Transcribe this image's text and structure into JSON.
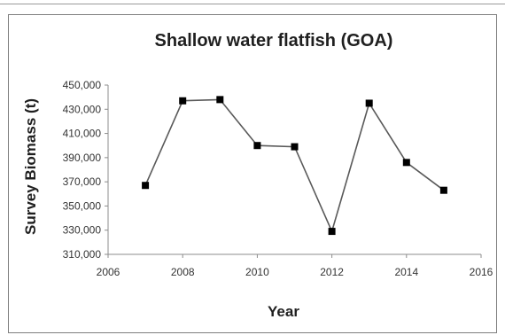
{
  "chart_data": {
    "type": "line",
    "title": "Shallow water flatfish (GOA)",
    "xlabel": "Year",
    "ylabel": "Survey Biomass (t)",
    "xlim": [
      2006,
      2016
    ],
    "ylim": [
      310000,
      450000
    ],
    "x_ticks": [
      2006,
      2008,
      2010,
      2012,
      2014,
      2016
    ],
    "x_tick_labels": [
      "2006",
      "2008",
      "2010",
      "2012",
      "2014",
      "2016"
    ],
    "y_ticks": [
      310000,
      330000,
      350000,
      370000,
      390000,
      410000,
      430000,
      450000
    ],
    "y_tick_labels": [
      "310,000",
      "330,000",
      "350,000",
      "370,000",
      "390,000",
      "410,000",
      "430,000",
      "450,000"
    ],
    "grid": false,
    "legend": "none",
    "series": [
      {
        "x": [
          2007,
          2008,
          2009,
          2010,
          2011,
          2012,
          2013,
          2014,
          2015
        ],
        "y": [
          367000,
          437000,
          438000,
          400000,
          399000,
          329000,
          435000,
          386000,
          363000
        ],
        "color": "#595959",
        "marker_color": "#000000"
      }
    ]
  }
}
